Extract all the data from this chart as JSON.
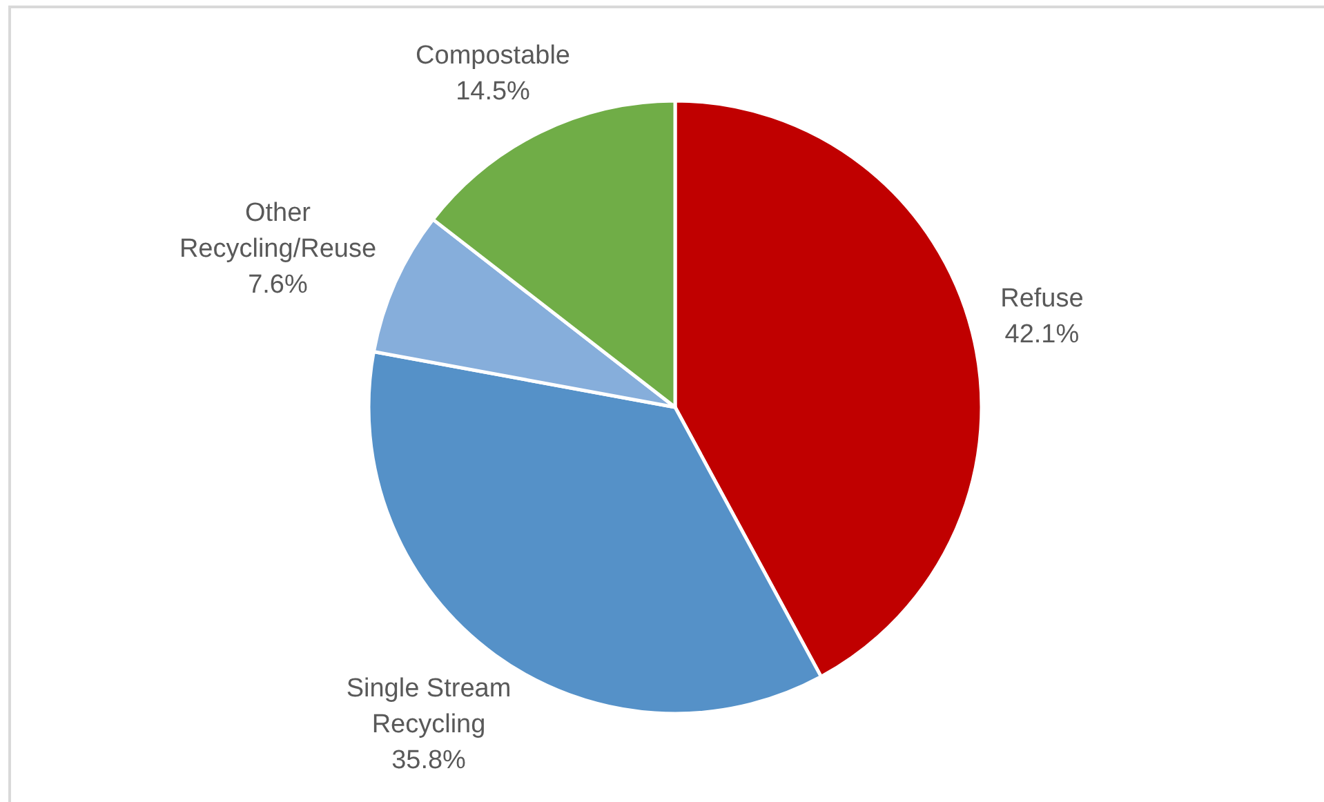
{
  "chart_data": {
    "type": "pie",
    "categories": [
      "Refuse",
      "Single Stream Recycling",
      "Other Recycling/Reuse",
      "Compostable"
    ],
    "values": [
      42.1,
      35.8,
      7.6,
      14.5
    ],
    "colors": [
      "#c00000",
      "#5591c8",
      "#86aedb",
      "#70ad47"
    ],
    "value_labels": [
      "42.1%",
      "35.8%",
      "7.6%",
      "14.5%"
    ]
  }
}
